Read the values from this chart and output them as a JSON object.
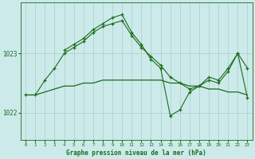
{
  "title": "Graphe pression niveau de la mer (hPa)",
  "bg_color": "#cceaea",
  "grid_color": "#aacccc",
  "line_color": "#1a6b1a",
  "ylabel_ticks": [
    1022,
    1023
  ],
  "xlim": [
    -0.5,
    23.5
  ],
  "ylim": [
    1021.55,
    1023.85
  ],
  "hours": [
    0,
    1,
    2,
    3,
    4,
    5,
    6,
    7,
    8,
    9,
    10,
    11,
    12,
    13,
    14,
    15,
    16,
    17,
    18,
    19,
    20,
    21,
    22,
    23
  ],
  "series_flat": [
    1022.3,
    1022.3,
    1022.35,
    1022.4,
    1022.45,
    1022.45,
    1022.5,
    1022.5,
    1022.55,
    1022.55,
    1022.55,
    1022.55,
    1022.55,
    1022.55,
    1022.55,
    1022.5,
    1022.5,
    1022.45,
    1022.45,
    1022.4,
    1022.4,
    1022.35,
    1022.35,
    1022.3
  ],
  "series_main": [
    1022.3,
    1022.3,
    1022.55,
    1022.75,
    1023.0,
    1023.1,
    1023.2,
    1023.35,
    1023.45,
    1023.5,
    1023.55,
    1023.3,
    1023.1,
    1022.95,
    1022.8,
    1022.6,
    1022.5,
    1022.4,
    1022.45,
    1022.6,
    1022.55,
    1022.75,
    1023.0,
    1022.75
  ],
  "series_high": [
    null,
    null,
    null,
    null,
    1023.05,
    1023.15,
    1023.25,
    1023.4,
    1023.5,
    1023.6,
    1023.65,
    1023.35,
    1023.15,
    1022.9,
    1022.75,
    1021.95,
    1022.05,
    1022.35,
    1022.45,
    1022.55,
    1022.5,
    1022.7,
    1023.0,
    1022.25
  ],
  "xticks": [
    0,
    1,
    2,
    3,
    4,
    5,
    6,
    7,
    8,
    9,
    10,
    11,
    12,
    13,
    14,
    15,
    16,
    17,
    18,
    19,
    20,
    21,
    22,
    23
  ]
}
